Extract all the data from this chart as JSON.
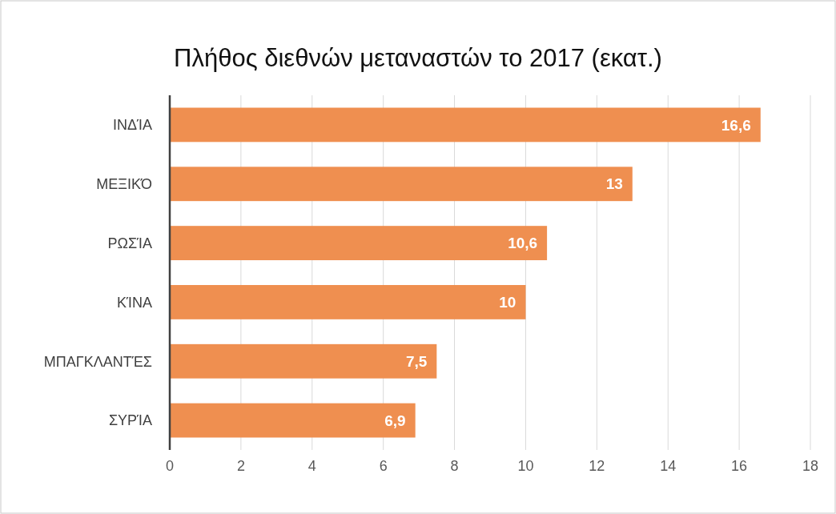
{
  "chart_data": {
    "type": "bar",
    "orientation": "horizontal",
    "title": "Πλήθος διεθνών μεταναστών το 2017 (εκατ.)",
    "categories": [
      "ΙΝΔΊΑ",
      "ΜΕΞΙΚΌ",
      "ΡΩΣΊΑ",
      "ΚΊΝΑ",
      "ΜΠΑΓΚΛΑΝΤΈΣ",
      "ΣΥΡΊΑ"
    ],
    "values": [
      16.6,
      13,
      10.6,
      10,
      7.5,
      6.9
    ],
    "value_labels": [
      "16,6",
      "13",
      "10,6",
      "10",
      "7,5",
      "6,9"
    ],
    "color": "#ef8f50",
    "xlim": [
      0,
      18
    ],
    "xticks": [
      0,
      2,
      4,
      6,
      8,
      10,
      12,
      14,
      16,
      18
    ],
    "grid": "x"
  }
}
